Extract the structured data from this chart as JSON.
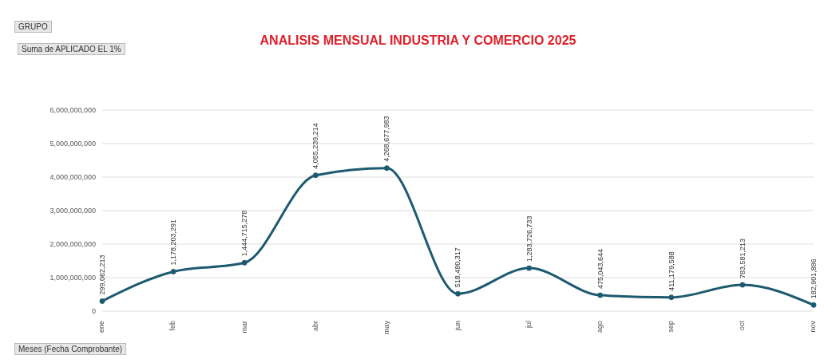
{
  "chart_data": {
    "type": "line",
    "title": "ANALISIS MENSUAL INDUSTRIA Y COMERCIO 2025",
    "annotations": [
      "GRUPO",
      "Suma de APLICADO EL 1%",
      "Meses (Fecha Comprobante)"
    ],
    "categories": [
      "ene",
      "feb",
      "mar",
      "abr",
      "may",
      "jun",
      "jul",
      "ago",
      "sep",
      "oct",
      "nov"
    ],
    "series": [
      {
        "color": "#1d5a70",
        "values": [
          299062213,
          1178203291,
          1444715278,
          4055239214,
          4268677983,
          518480317,
          1283726733,
          475043644,
          411179588,
          783581213,
          182901886
        ]
      }
    ],
    "value_labels": [
      "299,062,213",
      "1,178,203,291",
      "1,444,715,278",
      "4,055,239,214",
      "4,268,677,983",
      "518,480,317",
      "1,283,726,733",
      "475,043,644",
      "411,179,588",
      "783,581,213",
      "182,901,886"
    ],
    "ylim": [
      0,
      6000000000
    ],
    "yticks": [
      0,
      {
        "value": 1000000000,
        "label": "1,000,000,000"
      },
      {
        "value": 2000000000,
        "label": "2,000,000,000"
      },
      {
        "value": 3000000000,
        "label": "3,000,000,000"
      },
      {
        "value": 4000000000,
        "label": "4,000,000,000"
      },
      {
        "value": 5000000000,
        "label": "5,000,000,000"
      },
      {
        "value": 6000000000,
        "label": "6,000,000,000"
      }
    ],
    "grid": "y",
    "legend": false,
    "marker": "circle",
    "line_style": "solid"
  }
}
